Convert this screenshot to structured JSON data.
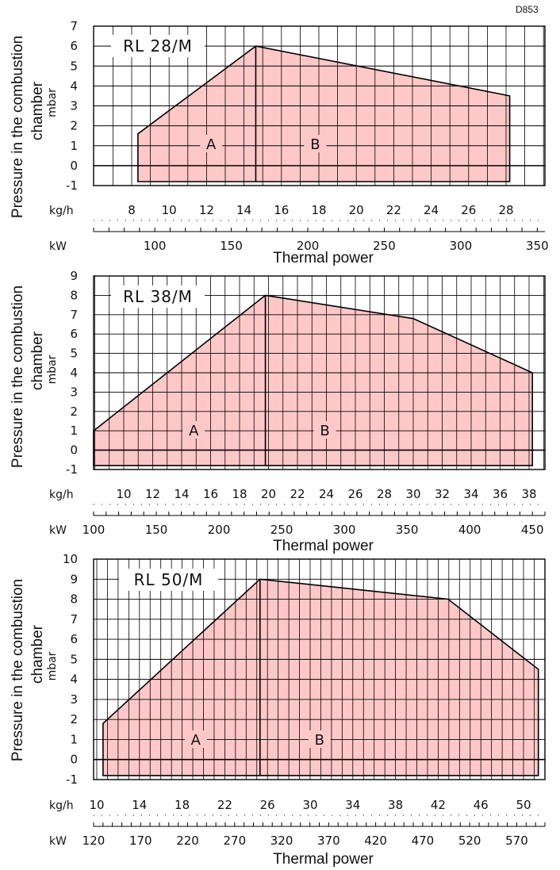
{
  "drawing_code": "D853",
  "y_axis_label_line1": "Pressure in the combustion",
  "y_axis_label_line2": "chamber",
  "y_unit": "mbar",
  "x_unit_mass": "kg/h",
  "x_unit_power": "kW",
  "x_axis_label": "Thermal power",
  "colors": {
    "fill": "#ffc8c8",
    "line": "#000000",
    "grid": "#000000"
  },
  "chart_data": [
    {
      "type": "area",
      "title": "RL 28/M",
      "xlabel": "Thermal power",
      "ylabel": "Pressure in the combustion chamber",
      "y_unit": "mbar",
      "ylim": [
        -1,
        7
      ],
      "y_ticks": [
        -1,
        0,
        1,
        2,
        3,
        4,
        5,
        6,
        7
      ],
      "kw_range": [
        60,
        355
      ],
      "kw_ticks": [
        100,
        150,
        200,
        250,
        300,
        350
      ],
      "kgh_ticks": [
        8,
        10,
        12,
        14,
        16,
        18,
        20,
        22,
        24,
        26,
        28
      ],
      "zone_labels": [
        "A",
        "B"
      ],
      "zone_boundary_kw": 166,
      "envelope_top": [
        {
          "x": 89,
          "y": 1.6
        },
        {
          "x": 166,
          "y": 6.0
        },
        {
          "x": 332,
          "y": 3.5
        }
      ],
      "envelope_bottom_y": -0.8
    },
    {
      "type": "area",
      "title": "RL 38/M",
      "xlabel": "Thermal power",
      "ylabel": "Pressure in the combustion chamber",
      "y_unit": "mbar",
      "ylim": [
        -1,
        9
      ],
      "y_ticks": [
        -1,
        0,
        1,
        2,
        3,
        4,
        5,
        6,
        7,
        8,
        9
      ],
      "kw_range": [
        100,
        460
      ],
      "kw_ticks": [
        100,
        150,
        200,
        250,
        300,
        350,
        400,
        450
      ],
      "kgh_ticks": [
        10,
        12,
        14,
        16,
        18,
        20,
        22,
        24,
        26,
        28,
        30,
        32,
        34,
        36,
        38
      ],
      "zone_labels": [
        "A",
        "B"
      ],
      "zone_boundary_kw": 237,
      "envelope_top": [
        {
          "x": 100,
          "y": 1.0
        },
        {
          "x": 237,
          "y": 8.0
        },
        {
          "x": 355,
          "y": 6.8
        },
        {
          "x": 450,
          "y": 4.0
        }
      ],
      "envelope_bottom_y": -0.8
    },
    {
      "type": "area",
      "title": "RL 50/M",
      "xlabel": "Thermal power",
      "ylabel": "Pressure in the combustion chamber",
      "y_unit": "mbar",
      "ylim": [
        -1,
        10
      ],
      "y_ticks": [
        -1,
        0,
        1,
        2,
        3,
        4,
        5,
        6,
        7,
        8,
        9,
        10
      ],
      "kw_range": [
        120,
        600
      ],
      "kw_ticks": [
        120,
        170,
        220,
        270,
        320,
        370,
        420,
        470,
        520,
        570
      ],
      "kgh_ticks": [
        10,
        14,
        18,
        22,
        26,
        30,
        34,
        38,
        42,
        46,
        50
      ],
      "zone_labels": [
        "A",
        "B"
      ],
      "zone_boundary_kw": 297,
      "envelope_top": [
        {
          "x": 130,
          "y": 1.8
        },
        {
          "x": 297,
          "y": 9.0
        },
        {
          "x": 497,
          "y": 8.0
        },
        {
          "x": 593,
          "y": 4.5
        }
      ],
      "envelope_bottom_y": -0.8
    }
  ]
}
